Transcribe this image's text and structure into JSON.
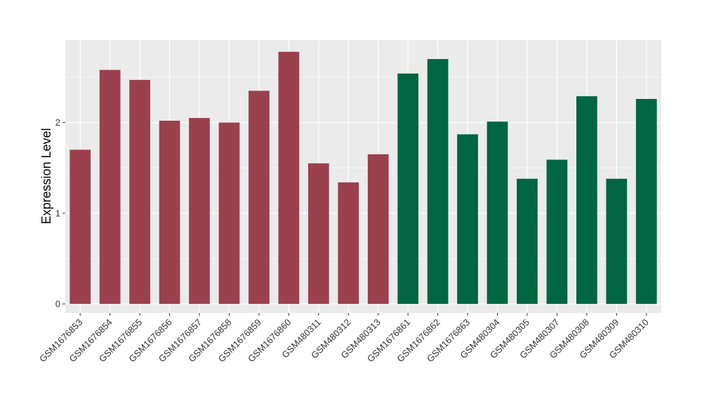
{
  "chart_data": {
    "type": "bar",
    "title": "",
    "xlabel": "",
    "ylabel": "Expression Level",
    "ylim": [
      -0.1,
      2.91
    ],
    "yticks": [
      0,
      1,
      2
    ],
    "grid": true,
    "legend": "none",
    "categories": [
      "GSM1676853",
      "GSM1676854",
      "GSM1676855",
      "GSM1676856",
      "GSM1676857",
      "GSM1676858",
      "GSM1676859",
      "GSM1676860",
      "GSM480311",
      "GSM480312",
      "GSM480313",
      "GSM1676861",
      "GSM1676862",
      "GSM1676863",
      "GSM480304",
      "GSM480305",
      "GSM480307",
      "GSM480308",
      "GSM480309",
      "GSM480310"
    ],
    "values": [
      1.7,
      2.58,
      2.47,
      2.02,
      2.05,
      2.0,
      2.35,
      2.78,
      1.55,
      1.34,
      1.65,
      2.54,
      2.7,
      1.87,
      2.01,
      1.38,
      1.59,
      2.29,
      1.38,
      2.26
    ],
    "group_colors": [
      "#9b404f",
      "#9b404f",
      "#9b404f",
      "#9b404f",
      "#9b404f",
      "#9b404f",
      "#9b404f",
      "#9b404f",
      "#9b404f",
      "#9b404f",
      "#9b404f",
      "#006644",
      "#006644",
      "#006644",
      "#006644",
      "#006644",
      "#006644",
      "#006644",
      "#006644",
      "#006644"
    ],
    "panel_background": "#ebebeb",
    "grid_color": "#ffffff"
  }
}
